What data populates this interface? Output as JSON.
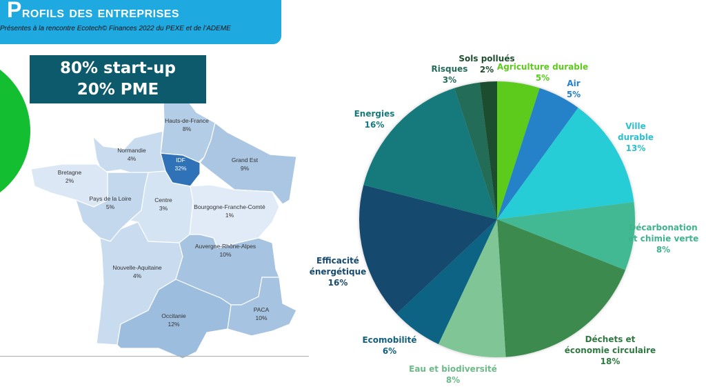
{
  "header": {
    "title_first": "P",
    "title_rest": "rofils des entreprises",
    "subtitle": "Présentes à la rencontre Ecotech© Finances 2022 du PEXE et de l’ADEME",
    "color": "#1fa9e1"
  },
  "profile_box": {
    "line1": "80% start-up",
    "line2": "20% PME",
    "color": "#0c5a6b"
  },
  "map": {
    "regions": [
      {
        "name": "Hauts-de-France",
        "value": "8%",
        "color": "#b4cde6"
      },
      {
        "name": "Grand Est",
        "value": "9%",
        "color": "#aac6e2"
      },
      {
        "name": "IDF",
        "value": "32%",
        "color": "#2f72b8"
      },
      {
        "name": "Normandie",
        "value": "4%",
        "color": "#c8dbef"
      },
      {
        "name": "Bretagne",
        "value": "2%",
        "color": "#dbe7f5"
      },
      {
        "name": "Pays de la Loire",
        "value": "5%",
        "color": "#c4d8ed"
      },
      {
        "name": "Centre",
        "value": "3%",
        "color": "#d5e4f3"
      },
      {
        "name": "Bourgogne-Franche-Comté",
        "value": "1%",
        "color": "#e1ebf7"
      },
      {
        "name": "Nouvelle-Aquitaine",
        "value": "4%",
        "color": "#c8dbef"
      },
      {
        "name": "Auvergne-Rhône-Alpes",
        "value": "10%",
        "color": "#a6c3e1"
      },
      {
        "name": "PACA",
        "value": "10%",
        "color": "#a6c3e1"
      },
      {
        "name": "Occitanie",
        "value": "12%",
        "color": "#9dbddf"
      }
    ]
  },
  "chart_data": {
    "type": "pie",
    "categories": [
      "Agriculture durable",
      "Air",
      "Ville durable",
      "Décarbonation et chimie verte",
      "Déchets et économie circulaire",
      "Eau et biodiversité",
      "Ecomobilité",
      "Efficacité énergétique",
      "Energies",
      "Risques",
      "Sols pollués"
    ],
    "values": [
      5,
      5,
      13,
      8,
      18,
      8,
      6,
      16,
      16,
      3,
      2
    ],
    "labels": [
      {
        "lines": [
          "Agriculture durable"
        ],
        "pct": "5%"
      },
      {
        "lines": [
          "Air"
        ],
        "pct": "5%"
      },
      {
        "lines": [
          "Ville",
          "durable"
        ],
        "pct": "13%"
      },
      {
        "lines": [
          "Décarbonation",
          "et chimie verte"
        ],
        "pct": "8%"
      },
      {
        "lines": [
          "Déchets et",
          "économie circulaire"
        ],
        "pct": "18%"
      },
      {
        "lines": [
          "Eau et biodiversité"
        ],
        "pct": "8%"
      },
      {
        "lines": [
          "Ecomobilité"
        ],
        "pct": "6%"
      },
      {
        "lines": [
          "Efficacité",
          "énergétique"
        ],
        "pct": "16%"
      },
      {
        "lines": [
          "Energies"
        ],
        "pct": "16%"
      },
      {
        "lines": [
          "Risques"
        ],
        "pct": "3%"
      },
      {
        "lines": [
          "Sols pollués"
        ],
        "pct": "2%"
      }
    ],
    "colors": [
      "#5ccb1c",
      "#2582c8",
      "#26cdd6",
      "#43b993",
      "#3d8a50",
      "#7fc595",
      "#116484",
      "#164a6e",
      "#167a7b",
      "#236c58",
      "#1e4d2e"
    ],
    "label_colors": [
      "#5ccb1c",
      "#2582c8",
      "#2bc0cf",
      "#3fb48c",
      "#2e7a40",
      "#6cba88",
      "#12607e",
      "#164a6e",
      "#167a7b",
      "#236c58",
      "#1e4d2e"
    ],
    "start": "top",
    "direction": "clockwise"
  }
}
